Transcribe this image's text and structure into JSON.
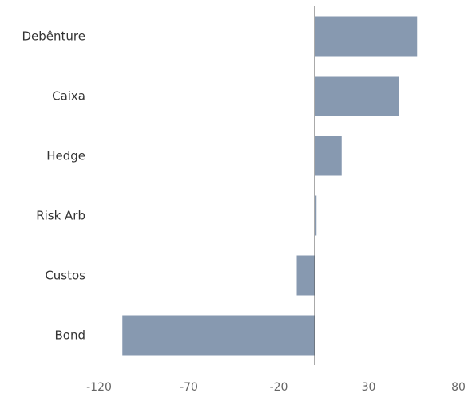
{
  "chart_data": {
    "type": "bar",
    "orientation": "horizontal",
    "categories": [
      "Debênture",
      "Caixa",
      "Hedge",
      "Risk Arb",
      "Custos",
      "Bond"
    ],
    "values": [
      57,
      47,
      15,
      1,
      -10,
      -107
    ],
    "xlim": [
      -120,
      80
    ],
    "x_ticks": [
      -120,
      -70,
      -20,
      30,
      80
    ],
    "bar_color": "#8799b0",
    "grid": false,
    "title": "",
    "xlabel": "",
    "ylabel": ""
  }
}
